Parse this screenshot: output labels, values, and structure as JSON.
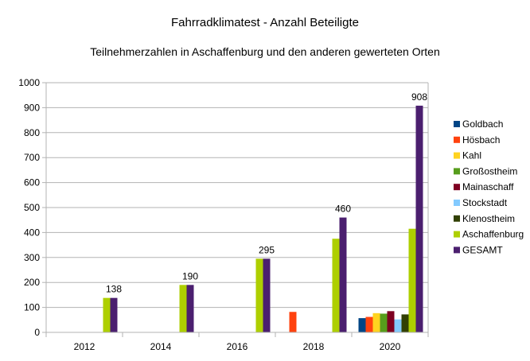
{
  "chart_data": {
    "type": "bar",
    "title": "Fahrradklimatest - Anzahl Beteiligte",
    "subtitle": "Teilnehmerzahlen in Aschaffenburg und den anderen gewerteten Orten",
    "xlabel": "",
    "ylabel": "",
    "ylim": [
      0,
      1000
    ],
    "yticks": [
      "0",
      "100",
      "200",
      "300",
      "400",
      "500",
      "600",
      "700",
      "800",
      "900",
      "1000"
    ],
    "categories": [
      "2012",
      "2014",
      "2016",
      "2018",
      "2020"
    ],
    "grid": true,
    "legend_position": "right",
    "series": [
      {
        "name": "Goldbach",
        "color": "#004586",
        "values": [
          null,
          null,
          null,
          null,
          57
        ]
      },
      {
        "name": "Hösbach",
        "color": "#ff420e",
        "values": [
          null,
          null,
          null,
          82,
          62
        ]
      },
      {
        "name": "Kahl",
        "color": "#ffd320",
        "values": [
          null,
          null,
          null,
          null,
          77
        ]
      },
      {
        "name": "Großostheim",
        "color": "#579d1c",
        "values": [
          null,
          null,
          null,
          null,
          75
        ]
      },
      {
        "name": "Mainaschaff",
        "color": "#7e0021",
        "values": [
          null,
          null,
          null,
          null,
          85
        ]
      },
      {
        "name": "Stockstadt",
        "color": "#83caff",
        "values": [
          null,
          null,
          null,
          null,
          52
        ]
      },
      {
        "name": "Klenostheim",
        "color": "#314004",
        "values": [
          null,
          null,
          null,
          null,
          72
        ]
      },
      {
        "name": "Aschaffenburg",
        "color": "#aecf00",
        "values": [
          138,
          190,
          295,
          375,
          415
        ]
      },
      {
        "name": "GESAMT",
        "color": "#4b1f6f",
        "values": [
          138,
          190,
          295,
          460,
          908
        ]
      }
    ],
    "data_labels": [
      {
        "category": "2012",
        "series": "GESAMT",
        "text": "138"
      },
      {
        "category": "2014",
        "series": "GESAMT",
        "text": "190"
      },
      {
        "category": "2016",
        "series": "GESAMT",
        "text": "295"
      },
      {
        "category": "2018",
        "series": "GESAMT",
        "text": "460"
      },
      {
        "category": "2020",
        "series": "GESAMT",
        "text": "908"
      }
    ]
  }
}
